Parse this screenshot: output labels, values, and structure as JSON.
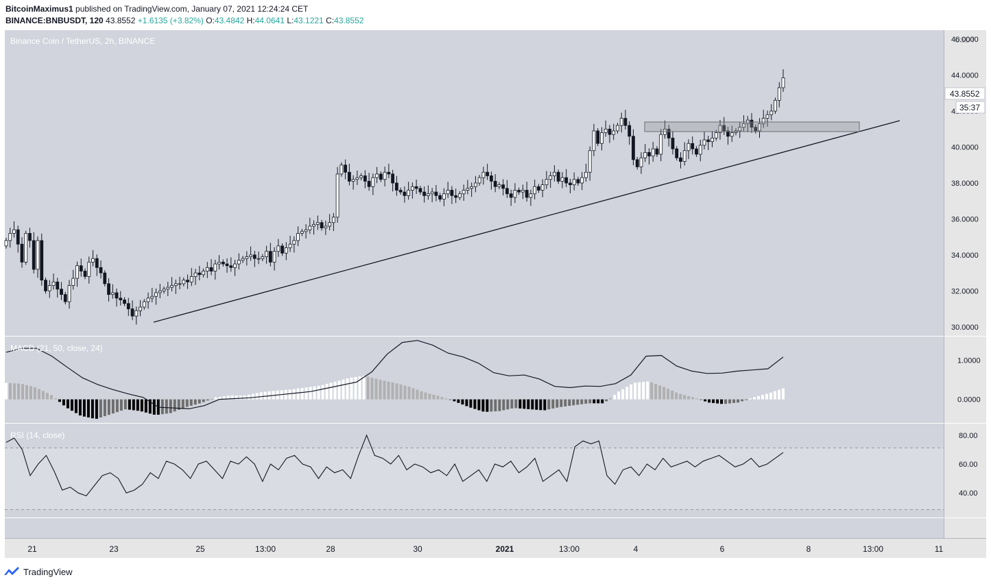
{
  "header": {
    "author": "BitcoinMaximus1",
    "published_text": "published on TradingView.com, January 07, 2021 12:24:24 CET",
    "symbol": "BINANCE:BNBUSDT, 120",
    "last": "43.8552",
    "change": "+1.6135 (+3.82%)",
    "o_label": "O:",
    "o_value": "43.4842",
    "h_label": "H:",
    "h_value": "44.0641",
    "l_label": "L:",
    "l_value": "43.1221",
    "c_label": "C:",
    "c_value": "43.8552"
  },
  "main_pane": {
    "title": "Binance Coin / TetherUS, 2h, BINANCE",
    "currency": "USDT",
    "price_badge": "43.8552",
    "countdown_badge": "35:37",
    "price_ticks": [
      "46.0000",
      "44.0000",
      "42.0000",
      "40.0000",
      "38.0000",
      "36.0000",
      "34.0000",
      "32.0000",
      "30.0000"
    ]
  },
  "macd_pane": {
    "title": "MACD (21, 50, close, 24)",
    "ticks": [
      "1.0000",
      "0.0000"
    ]
  },
  "rsi_pane": {
    "title": "RSI (14, close)",
    "ticks": [
      "80.00",
      "60.00",
      "40.00"
    ]
  },
  "time_axis": {
    "labels": [
      "21",
      "23",
      "25",
      "13:00",
      "28",
      "30",
      "2021",
      "13:00",
      "4",
      "6",
      "8",
      "13:00",
      "11"
    ]
  },
  "footer": {
    "brand": "TradingView"
  },
  "colors": {
    "pane_bg": "#d1d4dc",
    "axis_bg": "#e6e6e6",
    "candle": "#131722",
    "hist_pos_strong": "#ffffff",
    "hist_pos_weak": "#b0b0b0",
    "hist_neg_strong": "#000000",
    "hist_neg_weak": "#6e6e6e",
    "accent": "#26a69a",
    "brand": "#2962ff"
  },
  "chart_data": [
    {
      "type": "candlestick",
      "title": "Binance Coin / TetherUS, 2h, BINANCE",
      "ylabel": "USDT",
      "ylim": [
        29.5,
        46.5
      ],
      "x_labels": [
        "21",
        "23",
        "25",
        "13:00",
        "28",
        "30",
        "2021",
        "13:00",
        "4",
        "6",
        "8",
        "13:00",
        "11"
      ],
      "close_series": [
        34.8,
        35.2,
        35.4,
        34.6,
        33.6,
        35.2,
        34.8,
        33.2,
        34.8,
        32.6,
        32.0,
        32.3,
        32.5,
        32.1,
        31.8,
        31.4,
        32.3,
        32.7,
        33.4,
        33.1,
        32.8,
        33.6,
        33.8,
        33.3,
        33.0,
        32.4,
        31.8,
        31.9,
        31.6,
        31.5,
        31.3,
        31.0,
        30.6,
        30.9,
        31.1,
        31.4,
        31.6,
        31.7,
        31.9,
        32.0,
        32.1,
        32.2,
        32.3,
        32.4,
        32.4,
        32.6,
        32.5,
        32.8,
        33.0,
        32.9,
        33.1,
        33.3,
        33.1,
        33.5,
        33.6,
        33.5,
        33.4,
        33.3,
        33.5,
        33.7,
        33.8,
        33.9,
        34.0,
        33.8,
        33.8,
        33.9,
        34.2,
        33.6,
        34.2,
        34.5,
        34.1,
        34.4,
        34.6,
        34.8,
        35.2,
        35.3,
        35.4,
        35.6,
        35.7,
        35.8,
        35.5,
        35.6,
        35.8,
        36.1,
        38.5,
        39.0,
        38.6,
        38.1,
        38.2,
        38.3,
        38.4,
        38.1,
        37.8,
        38.3,
        38.5,
        38.2,
        38.6,
        38.5,
        38.0,
        37.6,
        37.5,
        37.3,
        37.6,
        37.8,
        37.7,
        37.5,
        37.3,
        37.4,
        37.5,
        37.3,
        37.1,
        37.4,
        37.6,
        37.3,
        37.2,
        37.4,
        37.6,
        37.7,
        37.8,
        38.0,
        38.3,
        38.6,
        38.4,
        38.1,
        37.8,
        37.9,
        37.7,
        37.4,
        37.2,
        37.6,
        37.5,
        37.6,
        37.2,
        37.4,
        37.8,
        37.6,
        37.9,
        38.2,
        38.4,
        38.6,
        38.1,
        38.3,
        38.0,
        37.9,
        38.2,
        38.0,
        38.3,
        38.6,
        39.8,
        40.9,
        40.2,
        40.8,
        41.0,
        40.7,
        40.9,
        41.2,
        41.6,
        41.2,
        40.6,
        39.3,
        38.9,
        39.4,
        39.7,
        39.5,
        39.9,
        39.6,
        40.7,
        41.0,
        40.5,
        39.9,
        39.4,
        39.2,
        39.8,
        40.2,
        39.9,
        39.6,
        40.1,
        40.4,
        40.3,
        40.5,
        40.8,
        41.2,
        40.9,
        40.6,
        40.8,
        40.9,
        41.1,
        41.3,
        41.5,
        41.1,
        40.9,
        41.3,
        41.6,
        41.8,
        42.0,
        42.6,
        43.3,
        43.8552
      ]
    },
    {
      "type": "line",
      "title": "MACD (21, 50, close, 24)",
      "ylim": [
        -0.6,
        1.6
      ],
      "series": [
        {
          "name": "MACD",
          "values": [
            1.2,
            1.3,
            1.3,
            1.1,
            0.82,
            0.55,
            0.38,
            0.25,
            0.14,
            0.05,
            -0.2,
            -0.22,
            -0.24,
            -0.16,
            0.0,
            0.02,
            0.04,
            0.08,
            0.12,
            0.16,
            0.2,
            0.28,
            0.36,
            0.44,
            0.7,
            1.15,
            1.45,
            1.5,
            1.38,
            1.18,
            1.08,
            0.92,
            0.68,
            0.6,
            0.62,
            0.52,
            0.33,
            0.3,
            0.34,
            0.33,
            0.4,
            0.62,
            1.1,
            1.12,
            0.85,
            0.72,
            0.66,
            0.67,
            0.72,
            0.75,
            0.78,
            1.08
          ]
        },
        {
          "name": "histogram",
          "values": [
            0.42,
            0.4,
            0.3,
            0.12,
            -0.2,
            -0.42,
            -0.5,
            -0.38,
            -0.25,
            -0.3,
            -0.4,
            -0.35,
            -0.2,
            -0.1,
            0.05,
            0.1,
            0.1,
            0.18,
            0.22,
            0.25,
            0.3,
            0.35,
            0.45,
            0.55,
            0.6,
            0.5,
            0.42,
            0.32,
            0.18,
            0.08,
            -0.05,
            -0.2,
            -0.32,
            -0.3,
            -0.22,
            -0.25,
            -0.28,
            -0.2,
            -0.15,
            -0.1,
            -0.1,
            0.2,
            0.42,
            0.46,
            0.32,
            0.15,
            0.05,
            -0.08,
            -0.12,
            -0.08,
            0.05,
            0.15,
            0.28
          ]
        }
      ]
    },
    {
      "type": "line",
      "title": "RSI (14, close)",
      "ylim": [
        23,
        88
      ],
      "series": [
        {
          "name": "RSI",
          "values": [
            75,
            78,
            70,
            52,
            60,
            66,
            55,
            42,
            44,
            40,
            38,
            45,
            52,
            54,
            50,
            40,
            42,
            46,
            54,
            50,
            62,
            60,
            56,
            50,
            60,
            62,
            56,
            50,
            62,
            60,
            65,
            60,
            48,
            60,
            56,
            64,
            66,
            60,
            58,
            50,
            58,
            54,
            56,
            50,
            66,
            80,
            66,
            64,
            60,
            66,
            56,
            60,
            58,
            54,
            56,
            52,
            60,
            48,
            52,
            56,
            48,
            60,
            58,
            62,
            54,
            58,
            64,
            48,
            52,
            56,
            48,
            72,
            76,
            74,
            76,
            52,
            46,
            56,
            58,
            52,
            60,
            56,
            64,
            58,
            60,
            62,
            58,
            62,
            64,
            66,
            62,
            58,
            60,
            64,
            58,
            60,
            64,
            68
          ]
        }
      ],
      "ref_lines": [
        70,
        30
      ]
    }
  ]
}
